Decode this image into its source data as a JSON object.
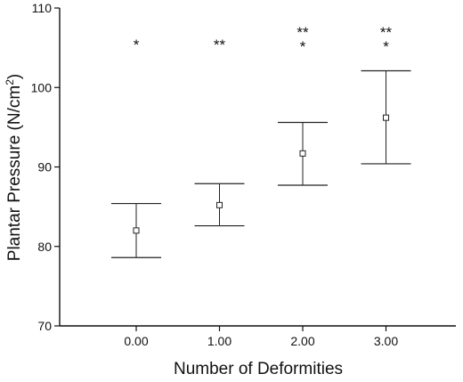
{
  "chart_data": {
    "type": "scatter",
    "xlabel": "Number of Deformities",
    "ylabel_main": "Plantar Pressure (N/cm",
    "ylabel_sup": "2",
    "ylabel_close": ")",
    "ylim": [
      70,
      110
    ],
    "yticks": [
      "70",
      "80",
      "90",
      "100",
      "110"
    ],
    "xlim": [
      -0.8,
      3.8
    ],
    "categories": [
      "0.00",
      "1.00",
      "2.00",
      "3.00"
    ],
    "x": [
      0,
      1,
      2,
      3
    ],
    "mean": [
      82.0,
      85.2,
      91.7,
      96.2
    ],
    "lower": [
      78.6,
      82.6,
      87.7,
      90.4
    ],
    "upper": [
      85.4,
      87.9,
      95.6,
      102.1
    ],
    "significance": [
      [
        "*"
      ],
      [
        "**"
      ],
      [
        "**",
        "*"
      ],
      [
        "**",
        "*"
      ]
    ],
    "marker": "open-square",
    "grid": false,
    "legend": "none"
  }
}
